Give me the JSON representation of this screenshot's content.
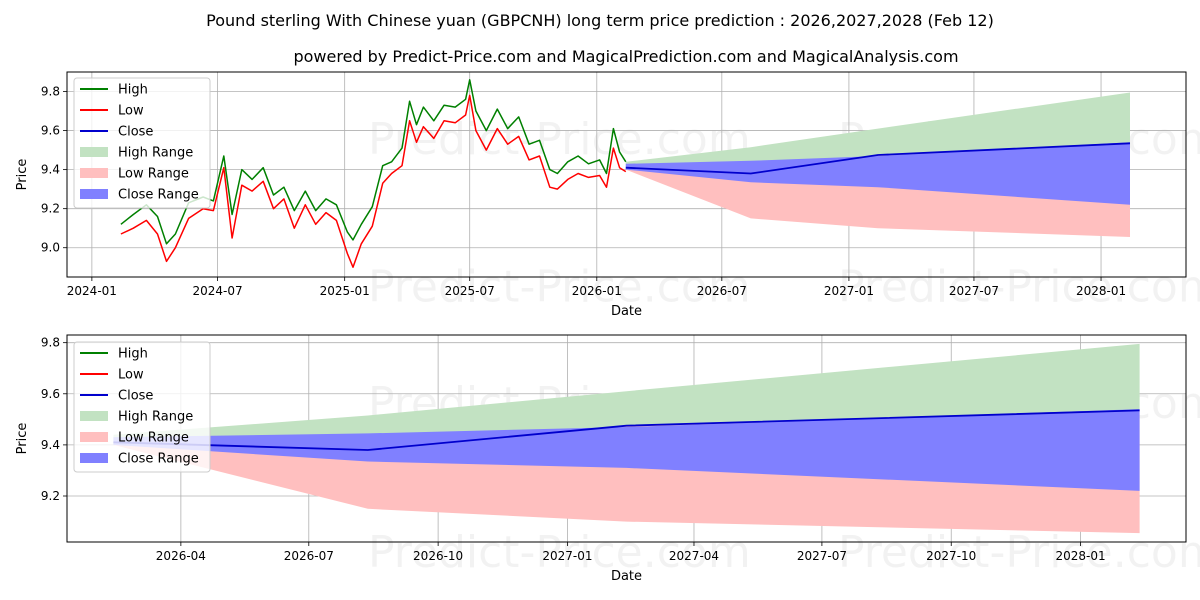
{
  "title": "Pound sterling With Chinese yuan (GBPCNH) long term price prediction : 2026,2027,2028 (Feb 12)",
  "subtitle": "powered by Predict-Price.com and MagicalPrediction.com and MagicalAnalysis.com",
  "watermark": "Predict-Price.com",
  "legend": [
    "High",
    "Low",
    "Close",
    "High Range",
    "Low Range",
    "Close Range"
  ],
  "colors": {
    "high": "#008000",
    "low": "#ff0000",
    "close": "#0000cd",
    "high_range": "#c2e2c2",
    "low_range": "#ffbfbf",
    "close_range": "#8080ff"
  },
  "chart_data": [
    {
      "type": "line",
      "panel": "top",
      "xlabel": "Date",
      "ylabel": "Price",
      "legend_position": "upper-left",
      "grid": true,
      "x_ticks": [
        "2024-01",
        "2024-07",
        "2025-01",
        "2025-07",
        "2026-01",
        "2026-07",
        "2027-01",
        "2027-07",
        "2028-01"
      ],
      "x_tick_values": [
        "2024-01-01",
        "2024-07-01",
        "2025-01-01",
        "2025-07-01",
        "2026-01-01",
        "2026-07-01",
        "2027-01-01",
        "2027-07-01",
        "2028-01-01"
      ],
      "xlim": [
        "2023-11-26",
        "2028-05-03"
      ],
      "y_ticks": [
        "9.0",
        "9.2",
        "9.4",
        "9.6",
        "9.8"
      ],
      "y_tick_values": [
        9.0,
        9.2,
        9.4,
        9.6,
        9.8
      ],
      "ylim": [
        8.85,
        9.9
      ],
      "history": {
        "dates": [
          "2024-02-12",
          "2024-03-01",
          "2024-03-20",
          "2024-04-05",
          "2024-04-18",
          "2024-05-01",
          "2024-05-20",
          "2024-06-10",
          "2024-06-25",
          "2024-07-10",
          "2024-07-22",
          "2024-08-05",
          "2024-08-20",
          "2024-09-05",
          "2024-09-20",
          "2024-10-05",
          "2024-10-20",
          "2024-11-05",
          "2024-11-20",
          "2024-12-05",
          "2024-12-20",
          "2025-01-05",
          "2025-01-13",
          "2025-01-25",
          "2025-02-10",
          "2025-02-25",
          "2025-03-10",
          "2025-03-25",
          "2025-04-05",
          "2025-04-15",
          "2025-04-25",
          "2025-05-10",
          "2025-05-25",
          "2025-06-10",
          "2025-06-25",
          "2025-07-01",
          "2025-07-10",
          "2025-07-25",
          "2025-08-10",
          "2025-08-25",
          "2025-09-10",
          "2025-09-25",
          "2025-10-10",
          "2025-10-25",
          "2025-11-05",
          "2025-11-20",
          "2025-12-05",
          "2025-12-20",
          "2026-01-05",
          "2026-01-15",
          "2026-01-25",
          "2026-02-03",
          "2026-02-12"
        ],
        "high": [
          9.12,
          9.17,
          9.22,
          9.16,
          9.02,
          9.07,
          9.23,
          9.26,
          9.24,
          9.47,
          9.17,
          9.4,
          9.35,
          9.41,
          9.27,
          9.31,
          9.19,
          9.29,
          9.19,
          9.25,
          9.22,
          9.08,
          9.04,
          9.12,
          9.21,
          9.42,
          9.44,
          9.51,
          9.75,
          9.63,
          9.72,
          9.65,
          9.73,
          9.72,
          9.76,
          9.86,
          9.7,
          9.6,
          9.71,
          9.61,
          9.67,
          9.53,
          9.55,
          9.4,
          9.38,
          9.44,
          9.47,
          9.43,
          9.45,
          9.38,
          9.61,
          9.49,
          9.44
        ],
        "low": [
          9.07,
          9.1,
          9.14,
          9.07,
          8.93,
          9.0,
          9.15,
          9.2,
          9.19,
          9.41,
          9.05,
          9.32,
          9.29,
          9.34,
          9.2,
          9.25,
          9.1,
          9.22,
          9.12,
          9.18,
          9.14,
          8.97,
          8.9,
          9.02,
          9.11,
          9.33,
          9.38,
          9.42,
          9.65,
          9.54,
          9.62,
          9.56,
          9.65,
          9.64,
          9.68,
          9.78,
          9.6,
          9.5,
          9.61,
          9.53,
          9.57,
          9.45,
          9.47,
          9.31,
          9.3,
          9.35,
          9.38,
          9.36,
          9.37,
          9.31,
          9.51,
          9.41,
          9.39
        ]
      },
      "forecast": {
        "dates": [
          "2026-02-12",
          "2026-08-12",
          "2027-02-12",
          "2028-02-12"
        ],
        "close": [
          9.41,
          9.38,
          9.475,
          9.535
        ],
        "high_range": {
          "upper": [
            9.44,
            9.515,
            9.61,
            9.795
          ],
          "lower": [
            9.4,
            9.38,
            9.475,
            9.535
          ]
        },
        "low_range": {
          "upper": [
            9.41,
            9.38,
            9.475,
            9.535
          ],
          "lower": [
            9.4,
            9.15,
            9.1,
            9.055
          ]
        },
        "close_range": {
          "upper": [
            9.43,
            9.445,
            9.47,
            9.54
          ],
          "lower": [
            9.4,
            9.335,
            9.31,
            9.22
          ]
        }
      }
    },
    {
      "type": "line",
      "panel": "bottom",
      "xlabel": "Date",
      "ylabel": "Price",
      "legend_position": "upper-left",
      "grid": true,
      "x_ticks": [
        "2026-04",
        "2026-07",
        "2026-10",
        "2027-01",
        "2027-04",
        "2027-07",
        "2027-10",
        "2028-01"
      ],
      "x_tick_values": [
        "2026-04-01",
        "2026-07-01",
        "2026-10-01",
        "2027-01-01",
        "2027-04-01",
        "2027-07-01",
        "2027-10-01",
        "2028-01-01"
      ],
      "xlim": [
        "2026-01-10",
        "2028-03-16"
      ],
      "y_ticks": [
        "9.2",
        "9.4",
        "9.6",
        "9.8"
      ],
      "y_tick_values": [
        9.2,
        9.4,
        9.6,
        9.8
      ],
      "ylim": [
        9.02,
        9.83
      ],
      "forecast": {
        "dates": [
          "2026-02-12",
          "2026-08-12",
          "2027-02-12",
          "2028-02-12"
        ],
        "close": [
          9.41,
          9.38,
          9.475,
          9.535
        ],
        "high_range": {
          "upper": [
            9.44,
            9.515,
            9.61,
            9.795
          ],
          "lower": [
            9.4,
            9.38,
            9.475,
            9.535
          ]
        },
        "low_range": {
          "upper": [
            9.41,
            9.38,
            9.475,
            9.535
          ],
          "lower": [
            9.4,
            9.15,
            9.1,
            9.055
          ]
        },
        "close_range": {
          "upper": [
            9.43,
            9.445,
            9.47,
            9.54
          ],
          "lower": [
            9.4,
            9.335,
            9.31,
            9.22
          ]
        }
      }
    }
  ]
}
